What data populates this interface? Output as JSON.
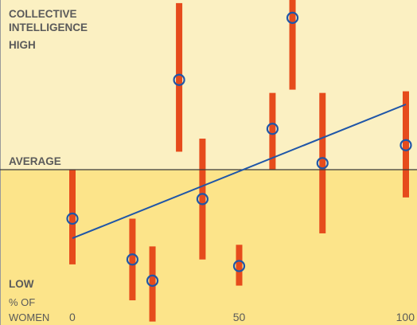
{
  "colors": {
    "band_above": "#fbf0c2",
    "band_below": "#fce48a",
    "error_bar": "#e64b1c",
    "marker": "#1f56a8",
    "trend_line": "#1f56a8",
    "baseline": "#3a3a3a",
    "left_edge": "#9a9a9a",
    "label": "#5a5a5a"
  },
  "chart_data": {
    "type": "scatter",
    "title": "",
    "ylabel": "COLLECTIVE INTELLIGENCE",
    "y_tiers": {
      "high": "HIGH",
      "average": "AVERAGE",
      "low": "LOW"
    },
    "xlabel_lines": [
      "% OF",
      "WOMEN"
    ],
    "xlim": [
      0,
      100
    ],
    "ylim": [
      -1.0,
      1.0
    ],
    "xticks": [
      0,
      50,
      100
    ],
    "xtick_labels": [
      "0",
      "50",
      "100"
    ],
    "baseline_y": 0,
    "points": [
      {
        "x": 0,
        "y": -0.3,
        "low": -0.58,
        "high": 0.0
      },
      {
        "x": 18,
        "y": -0.55,
        "low": -0.8,
        "high": -0.3
      },
      {
        "x": 24,
        "y": -0.68,
        "low": -0.93,
        "high": -0.47
      },
      {
        "x": 32,
        "y": 0.55,
        "low": 0.11,
        "high": 1.02
      },
      {
        "x": 39,
        "y": -0.18,
        "low": -0.55,
        "high": 0.19
      },
      {
        "x": 50,
        "y": -0.59,
        "low": -0.71,
        "high": -0.46
      },
      {
        "x": 60,
        "y": 0.25,
        "low": 0.0,
        "high": 0.47
      },
      {
        "x": 66,
        "y": 0.93,
        "low": 0.49,
        "high": 1.13
      },
      {
        "x": 75,
        "y": 0.04,
        "low": -0.39,
        "high": 0.47
      },
      {
        "x": 100,
        "y": 0.15,
        "low": -0.17,
        "high": 0.48
      }
    ],
    "trend_line": {
      "x": [
        0,
        100
      ],
      "y": [
        -0.42,
        0.4
      ]
    },
    "grid": false,
    "legend": "none"
  }
}
